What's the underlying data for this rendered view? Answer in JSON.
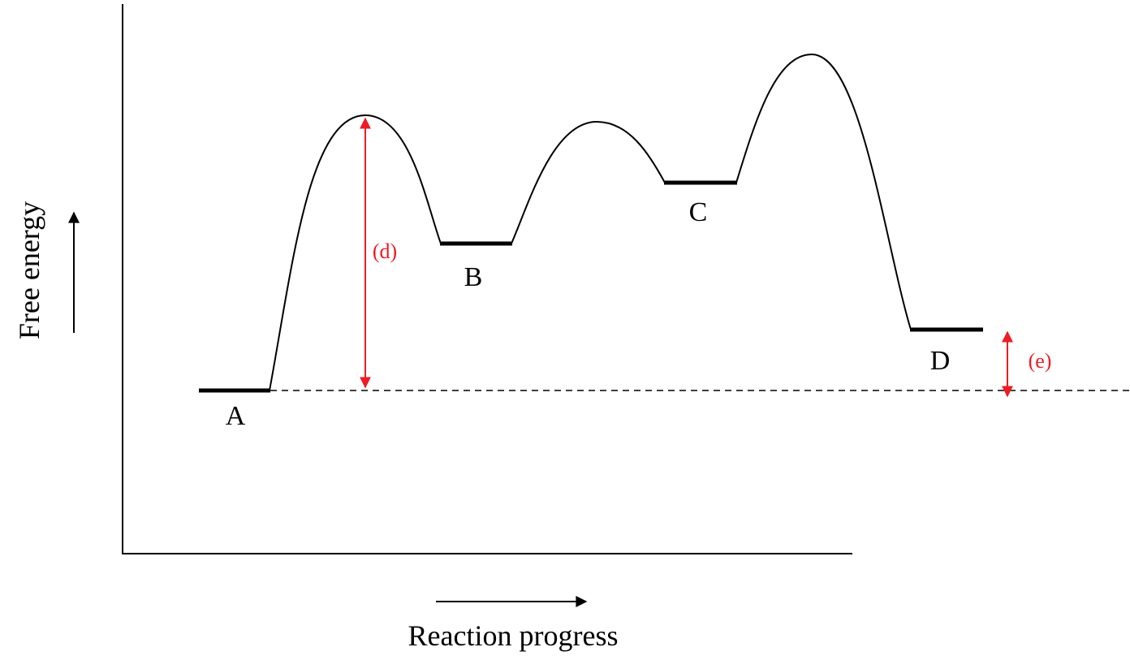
{
  "axes": {
    "y_label": "Free energy",
    "x_label": "Reaction progress"
  },
  "states": {
    "a": "A",
    "b": "B",
    "c": "C",
    "d": "D"
  },
  "annotations": {
    "d": "(d)",
    "e": "(e)"
  },
  "colors": {
    "curve": "#000000",
    "annotation": "#ee1c24"
  }
}
